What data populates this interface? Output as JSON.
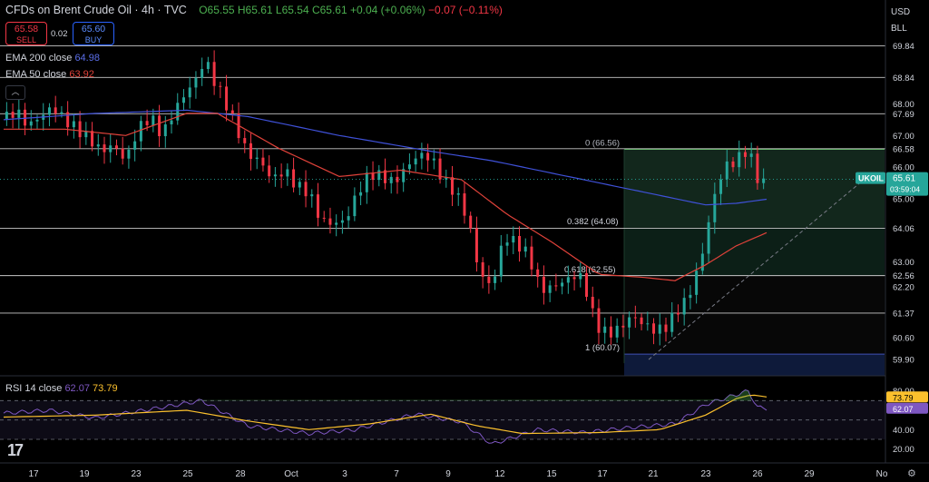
{
  "header": {
    "symbol": "CFDs on Brent Crude Oil · 4h · TVC",
    "ohlc": "O65.55 H65.61 L65.54 C65.61 +0.04 (+0.06%)",
    "change2": "−0.07 (−0.11%)"
  },
  "quote": {
    "sell_price": "65.58",
    "sell_label": "SELL",
    "spread": "0.02",
    "buy_price": "65.60",
    "buy_label": "BUY"
  },
  "indicators": {
    "ema200": {
      "label": "EMA 200 close",
      "value": "64.98"
    },
    "ema50": {
      "label": "EMA 50 close",
      "value": "63.92"
    },
    "rsi": {
      "label": "RSI 14 close",
      "value1": "62.07",
      "value2": "73.79"
    }
  },
  "currency": {
    "unit": "USD",
    "unit2": "BLL"
  },
  "price_label": {
    "symbol": "UKOIL",
    "price": "65.61",
    "countdown": "03:59:04"
  },
  "fib": [
    {
      "text": "0 (66.56)",
      "price": 66.56
    },
    {
      "text": "0.382 (64.08)",
      "price": 64.08
    },
    {
      "text": "0.618 (62.55)",
      "price": 62.55
    },
    {
      "text": "1 (60.07)",
      "price": 60.07
    }
  ],
  "chart_data": {
    "type": "candlestick",
    "title": "CFDs on Brent Crude Oil · 4h · TVC",
    "ylim": [
      59.5,
      70.2
    ],
    "y_ticks": [
      69.84,
      68.84,
      68.0,
      67.69,
      67.0,
      66.58,
      66.0,
      65.0,
      64.06,
      63.0,
      62.56,
      62.2,
      61.37,
      60.6,
      59.9
    ],
    "horizontal_levels": [
      69.84,
      68.84,
      67.69,
      66.58,
      64.06,
      62.56,
      61.37
    ],
    "x_labels": [
      "17",
      "19",
      "23",
      "25",
      "28",
      "Oct",
      "3",
      "7",
      "9",
      "12",
      "15",
      "17",
      "21",
      "23",
      "26",
      "29",
      "No"
    ],
    "close_path": [
      [
        0,
        67.5
      ],
      [
        4,
        67.8
      ],
      [
        8,
        67.3
      ],
      [
        12,
        67.6
      ],
      [
        16,
        67.9
      ],
      [
        20,
        67.5
      ],
      [
        24,
        67.2
      ],
      [
        28,
        66.9
      ],
      [
        32,
        66.5
      ],
      [
        36,
        66.7
      ],
      [
        40,
        66.2
      ],
      [
        44,
        67.2
      ],
      [
        48,
        67.6
      ],
      [
        52,
        67.0
      ],
      [
        56,
        67.8
      ],
      [
        60,
        68.4
      ],
      [
        64,
        68.9
      ],
      [
        66,
        69.5
      ],
      [
        68,
        68.9
      ],
      [
        72,
        68.2
      ],
      [
        76,
        67.3
      ],
      [
        80,
        66.4
      ],
      [
        84,
        66.2
      ],
      [
        88,
        65.6
      ],
      [
        92,
        65.9
      ],
      [
        96,
        65.4
      ],
      [
        100,
        65.2
      ],
      [
        104,
        64.3
      ],
      [
        108,
        64.2
      ],
      [
        112,
        64.3
      ],
      [
        116,
        65.2
      ],
      [
        120,
        65.8
      ],
      [
        124,
        65.7
      ],
      [
        128,
        65.5
      ],
      [
        132,
        66.0
      ],
      [
        136,
        66.4
      ],
      [
        140,
        66.3
      ],
      [
        144,
        65.6
      ],
      [
        148,
        65.2
      ],
      [
        152,
        64.4
      ],
      [
        156,
        62.6
      ],
      [
        160,
        62.2
      ],
      [
        164,
        63.8
      ],
      [
        168,
        63.6
      ],
      [
        172,
        63.2
      ],
      [
        176,
        62.1
      ],
      [
        180,
        62.2
      ],
      [
        184,
        62.4
      ],
      [
        188,
        62.6
      ],
      [
        190,
        62.4
      ],
      [
        194,
        61.0
      ],
      [
        198,
        60.7
      ],
      [
        202,
        60.9
      ],
      [
        206,
        61.3
      ],
      [
        210,
        61.0
      ],
      [
        214,
        60.8
      ],
      [
        218,
        61.0
      ],
      [
        220,
        61.4
      ],
      [
        224,
        61.8
      ],
      [
        228,
        62.9
      ],
      [
        230,
        63.7
      ],
      [
        232,
        64.8
      ],
      [
        236,
        66.0
      ],
      [
        240,
        66.2
      ],
      [
        244,
        66.6
      ],
      [
        246,
        65.9
      ],
      [
        248,
        65.4
      ],
      [
        250,
        65.61
      ]
    ],
    "ema50": [
      [
        0,
        67.2
      ],
      [
        20,
        67.2
      ],
      [
        40,
        67.0
      ],
      [
        60,
        67.7
      ],
      [
        70,
        67.7
      ],
      [
        90,
        66.6
      ],
      [
        110,
        65.7
      ],
      [
        130,
        65.9
      ],
      [
        150,
        65.6
      ],
      [
        165,
        64.5
      ],
      [
        180,
        63.6
      ],
      [
        195,
        62.6
      ],
      [
        210,
        62.5
      ],
      [
        220,
        62.4
      ],
      [
        230,
        62.9
      ],
      [
        240,
        63.5
      ],
      [
        250,
        63.92
      ]
    ],
    "ema200": [
      [
        0,
        67.5
      ],
      [
        30,
        67.7
      ],
      [
        60,
        67.8
      ],
      [
        80,
        67.6
      ],
      [
        110,
        67.0
      ],
      [
        140,
        66.5
      ],
      [
        160,
        66.2
      ],
      [
        190,
        65.6
      ],
      [
        210,
        65.2
      ],
      [
        230,
        64.8
      ],
      [
        240,
        64.85
      ],
      [
        250,
        64.98
      ]
    ],
    "rsi": {
      "ylim": [
        15,
        90
      ],
      "levels": [
        70,
        50,
        30
      ],
      "ticks": [
        80.0,
        60.0,
        40.0,
        20.0
      ],
      "rsi_path": [
        [
          0,
          57
        ],
        [
          15,
          60
        ],
        [
          30,
          52
        ],
        [
          50,
          62
        ],
        [
          65,
          70
        ],
        [
          80,
          44
        ],
        [
          100,
          36
        ],
        [
          115,
          40
        ],
        [
          135,
          56
        ],
        [
          150,
          48
        ],
        [
          160,
          25
        ],
        [
          175,
          40
        ],
        [
          190,
          37
        ],
        [
          205,
          42
        ],
        [
          220,
          46
        ],
        [
          230,
          66
        ],
        [
          240,
          76
        ],
        [
          244,
          80
        ],
        [
          247,
          63
        ],
        [
          250,
          62.07
        ]
      ],
      "ma_path": [
        [
          0,
          53
        ],
        [
          30,
          55
        ],
        [
          60,
          60
        ],
        [
          80,
          49
        ],
        [
          100,
          40
        ],
        [
          120,
          46
        ],
        [
          140,
          56
        ],
        [
          155,
          44
        ],
        [
          170,
          36
        ],
        [
          195,
          37
        ],
        [
          215,
          40
        ],
        [
          230,
          55
        ],
        [
          240,
          72
        ],
        [
          245,
          76
        ],
        [
          250,
          73.79
        ]
      ]
    }
  },
  "colors": {
    "up": "#26a69a",
    "down": "#f23645",
    "ema50": "#e0423a",
    "ema200": "#3f51d8",
    "rsi": "#7e57c2",
    "rsi_ma": "#fbc02d",
    "fib_green": "#1b3c2d",
    "fib_blue": "#101c3a"
  }
}
